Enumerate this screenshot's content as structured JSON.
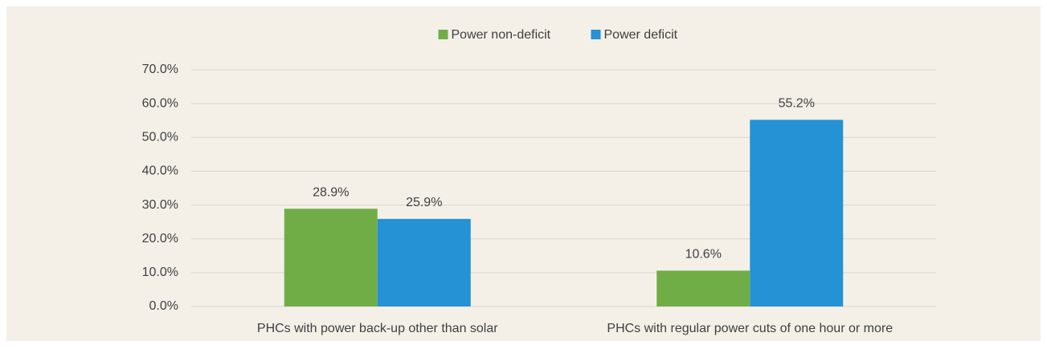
{
  "chart_data": {
    "type": "bar",
    "categories": [
      "PHCs with power back-up other than solar",
      "PHCs with regular power cuts of one hour or more"
    ],
    "series": [
      {
        "name": "Power non-deficit",
        "color": "#70ad47",
        "values": [
          28.9,
          10.6
        ],
        "value_labels": [
          "28.9%",
          "10.6%"
        ]
      },
      {
        "name": "Power deficit",
        "color": "#2492d4",
        "values": [
          25.9,
          55.2
        ],
        "value_labels": [
          "25.9%",
          "55.2%"
        ]
      }
    ],
    "ylim": [
      0,
      70
    ],
    "yticks": [
      {
        "value": 0,
        "label": "0.0%"
      },
      {
        "value": 10,
        "label": "10.0%"
      },
      {
        "value": 20,
        "label": "20.0%"
      },
      {
        "value": 30,
        "label": "30.0%"
      },
      {
        "value": 40,
        "label": "40.0%"
      },
      {
        "value": 50,
        "label": "50.0%"
      },
      {
        "value": 60,
        "label": "60.0%"
      },
      {
        "value": 70,
        "label": "70.0%"
      }
    ],
    "grid": true,
    "legend": "top"
  }
}
